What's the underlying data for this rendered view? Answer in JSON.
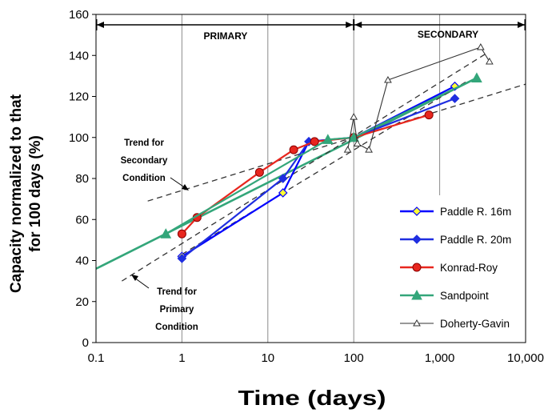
{
  "chart_data": {
    "type": "line",
    "xscale": "log",
    "xlim": [
      0.1,
      10000
    ],
    "ylim": [
      0,
      160
    ],
    "xlabel": "Time (days)",
    "ylabel_line1": "Capacity normalized to that",
    "ylabel_line2": "for 100 days  (%)",
    "xticks": [
      "0.1",
      "1",
      "10",
      "100",
      "1,000",
      "10,000"
    ],
    "yticks": [
      "0",
      "20",
      "40",
      "60",
      "80",
      "100",
      "120",
      "140",
      "160"
    ],
    "grid": "vertical",
    "legend_position": "right",
    "regions": {
      "primary": "PRIMARY",
      "secondary": "SECONDARY",
      "boundary": 100
    },
    "annotations": {
      "secondary_trend": [
        "Trend for",
        "Secondary",
        "Condition"
      ],
      "primary_trend": [
        "Trend for",
        "Primary",
        "Condition"
      ]
    },
    "series": [
      {
        "name": "Paddle R. 16m",
        "color": "#0000ff",
        "marker": "diamond",
        "marker_fill": "#ffff33",
        "points": [
          [
            1,
            42
          ],
          [
            15,
            73
          ],
          [
            30,
            98
          ],
          [
            100,
            100
          ],
          [
            1500,
            125
          ]
        ]
      },
      {
        "name": "Paddle R. 20m",
        "color": "#1f2ee0",
        "marker": "diamond",
        "marker_fill": "#1f2ee0",
        "points": [
          [
            1,
            41
          ],
          [
            15,
            80
          ],
          [
            30,
            98
          ],
          [
            100,
            100
          ],
          [
            1500,
            119
          ]
        ]
      },
      {
        "name": "Konrad-Roy",
        "color": "#e8261e",
        "marker": "circle",
        "marker_fill": "#e8261e",
        "points": [
          [
            1,
            53
          ],
          [
            1.5,
            61
          ],
          [
            8,
            83
          ],
          [
            20,
            94
          ],
          [
            35,
            98
          ],
          [
            100,
            100
          ],
          [
            750,
            111
          ]
        ]
      },
      {
        "name": "Sandpoint",
        "color": "#33a67a",
        "marker": "triangle",
        "marker_fill": "#33a67a",
        "points": [
          [
            0.65,
            53
          ],
          [
            50,
            99
          ],
          [
            100,
            100
          ],
          [
            2700,
            129
          ]
        ]
      },
      {
        "name": "Doherty-Gavin",
        "color": "#333333",
        "marker": "triangle-open",
        "marker_fill": "#ffffff",
        "points": [
          [
            85,
            94
          ],
          [
            100,
            110
          ],
          [
            110,
            97
          ],
          [
            150,
            94
          ],
          [
            250,
            128
          ],
          [
            3000,
            144
          ],
          [
            3800,
            137
          ]
        ]
      }
    ],
    "trend_lines": [
      {
        "name": "Sandpoint trend",
        "color": "#33a67a",
        "style": "solid",
        "from": [
          0.1,
          36
        ],
        "to": [
          2700,
          129
        ]
      },
      {
        "name": "Secondary trend",
        "color": "#333333",
        "style": "dashed",
        "from": [
          0.4,
          69
        ],
        "to": [
          10000,
          126
        ]
      },
      {
        "name": "Primary trend",
        "color": "#333333",
        "style": "dashed",
        "from": [
          0.2,
          30
        ],
        "to": [
          3500,
          141
        ]
      },
      {
        "name": "Primary trend 2",
        "color": "#333333",
        "style": "dashed",
        "from": [
          1,
          43
        ],
        "to": [
          2000,
          127
        ]
      }
    ]
  }
}
